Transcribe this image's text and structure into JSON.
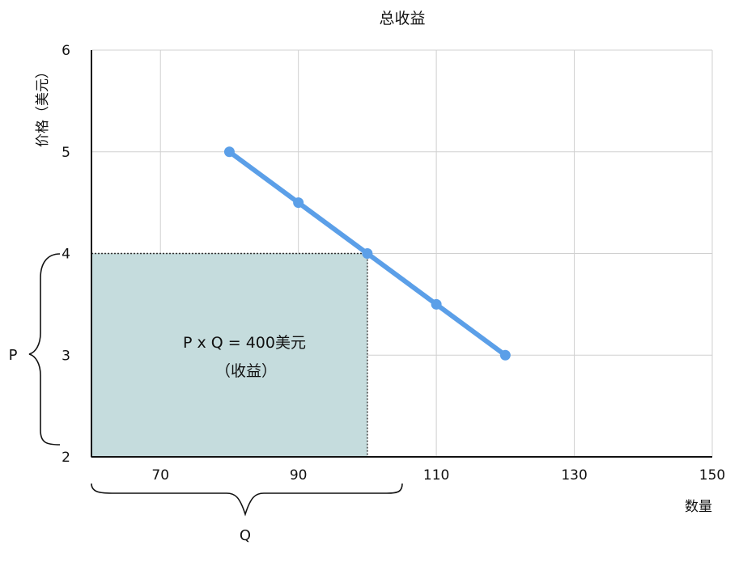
{
  "chart_data": {
    "type": "line",
    "title": "总收益",
    "xlabel": "数量",
    "ylabel": "价格（美元）",
    "xlim": [
      60,
      150
    ],
    "ylim": [
      2,
      6
    ],
    "x_ticks": [
      "70",
      "90",
      "110",
      "130",
      "150"
    ],
    "y_ticks": [
      "2",
      "3",
      "4",
      "5",
      "6"
    ],
    "grid": true,
    "series": [
      {
        "color": "#5b9fe8",
        "points": [
          {
            "x": 80,
            "y": 5
          },
          {
            "x": 90,
            "y": 4.5
          },
          {
            "x": 100,
            "y": 4
          },
          {
            "x": 110,
            "y": 3.5
          },
          {
            "x": 120,
            "y": 3
          }
        ]
      }
    ],
    "revenue_area": {
      "price": 4,
      "quantity": 100,
      "fill": "#c5dcdd",
      "label_line1": "P x Q = 400美元",
      "label_line2": "（收益）"
    },
    "brace_p_label": "P",
    "brace_q_label": "Q"
  }
}
